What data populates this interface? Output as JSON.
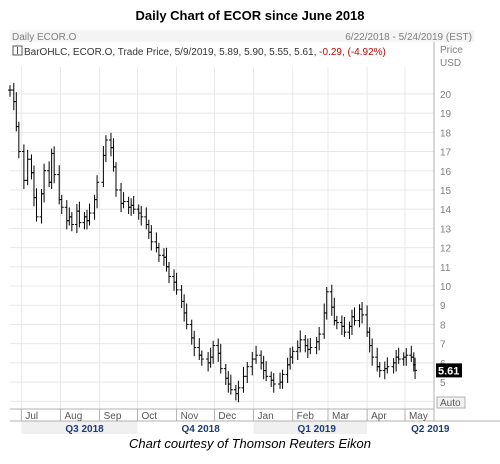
{
  "header": {
    "title": "Daily Chart of ECOR since June 2018",
    "caption": "Chart courtesy of Thomson Reuters Eikon"
  },
  "toolbar": {
    "symbol_label": "Daily ECOR.O",
    "date_range": "6/22/2018 - 5/24/2019 (EST)",
    "price_label": "Price",
    "currency_label": "USD",
    "auto_label": "Auto"
  },
  "legend": {
    "series": "BarOHLC, ECOR.O, Trade Price,",
    "details": "5/9/2019, 5.89, 5.90, 5.55, 5.61,",
    "change": "-0.29, (-4.92%)"
  },
  "last_price_tag": "5.61",
  "colors": {
    "bars": "#000000",
    "change_text": "#cc0000",
    "grid": "#e8e8e8",
    "axis_text": "#808080",
    "price_tag_bg": "#000000",
    "price_tag_text": "#ffffff",
    "quarter_band": "#f0f0f0"
  },
  "chart_data": {
    "type": "bar",
    "subtype": "ohlc",
    "series_name": "ECOR.O",
    "x_range": [
      "2018-06-22",
      "2019-05-24"
    ],
    "ylim": [
      3.6,
      21.4
    ],
    "y_ticks": [
      4,
      5,
      6,
      7,
      8,
      9,
      10,
      11,
      12,
      13,
      14,
      15,
      16,
      17,
      18,
      19,
      20
    ],
    "month_labels": [
      "Jul",
      "Aug",
      "Sep",
      "Oct",
      "Nov",
      "Dec",
      "Jan",
      "Feb",
      "Mar",
      "Apr",
      "May"
    ],
    "month_starts": [
      "2018-07-01",
      "2018-08-01",
      "2018-09-01",
      "2018-10-01",
      "2018-11-01",
      "2018-12-01",
      "2019-01-01",
      "2019-02-01",
      "2019-03-01",
      "2019-04-01",
      "2019-05-01"
    ],
    "quarter_labels": [
      "Q3 2018",
      "Q4 2018",
      "Q1 2019",
      "Q2 2019"
    ],
    "quarter_starts": [
      "2018-07-01",
      "2018-10-01",
      "2019-01-01",
      "2019-04-01"
    ],
    "grid": true,
    "closes": [
      {
        "date": "2018-06-22",
        "close": 20.2
      },
      {
        "date": "2018-06-25",
        "close": 19.6
      },
      {
        "date": "2018-06-27",
        "close": 18.3
      },
      {
        "date": "2018-06-29",
        "close": 17.0
      },
      {
        "date": "2018-07-03",
        "close": 15.5
      },
      {
        "date": "2018-07-06",
        "close": 16.6
      },
      {
        "date": "2018-07-09",
        "close": 15.9
      },
      {
        "date": "2018-07-11",
        "close": 14.6
      },
      {
        "date": "2018-07-13",
        "close": 13.6
      },
      {
        "date": "2018-07-17",
        "close": 14.8
      },
      {
        "date": "2018-07-19",
        "close": 16.0
      },
      {
        "date": "2018-07-23",
        "close": 15.4
      },
      {
        "date": "2018-07-25",
        "close": 16.9
      },
      {
        "date": "2018-07-27",
        "close": 15.8
      },
      {
        "date": "2018-07-31",
        "close": 14.5
      },
      {
        "date": "2018-08-02",
        "close": 14.1
      },
      {
        "date": "2018-08-06",
        "close": 13.4
      },
      {
        "date": "2018-08-08",
        "close": 13.6
      },
      {
        "date": "2018-08-10",
        "close": 13.2
      },
      {
        "date": "2018-08-14",
        "close": 13.9
      },
      {
        "date": "2018-08-16",
        "close": 13.3
      },
      {
        "date": "2018-08-20",
        "close": 13.6
      },
      {
        "date": "2018-08-22",
        "close": 13.4
      },
      {
        "date": "2018-08-24",
        "close": 13.8
      },
      {
        "date": "2018-08-28",
        "close": 14.5
      },
      {
        "date": "2018-08-30",
        "close": 15.4
      },
      {
        "date": "2018-09-04",
        "close": 16.8
      },
      {
        "date": "2018-09-06",
        "close": 17.6
      },
      {
        "date": "2018-09-10",
        "close": 17.2
      },
      {
        "date": "2018-09-12",
        "close": 16.2
      },
      {
        "date": "2018-09-14",
        "close": 15.0
      },
      {
        "date": "2018-09-18",
        "close": 14.3
      },
      {
        "date": "2018-09-20",
        "close": 14.4
      },
      {
        "date": "2018-09-24",
        "close": 14.1
      },
      {
        "date": "2018-09-26",
        "close": 14.2
      },
      {
        "date": "2018-09-28",
        "close": 14.0
      },
      {
        "date": "2018-10-02",
        "close": 13.8
      },
      {
        "date": "2018-10-04",
        "close": 13.6
      },
      {
        "date": "2018-10-08",
        "close": 13.2
      },
      {
        "date": "2018-10-10",
        "close": 12.8
      },
      {
        "date": "2018-10-12",
        "close": 12.3
      },
      {
        "date": "2018-10-16",
        "close": 12.0
      },
      {
        "date": "2018-10-18",
        "close": 11.6
      },
      {
        "date": "2018-10-22",
        "close": 11.5
      },
      {
        "date": "2018-10-24",
        "close": 11.0
      },
      {
        "date": "2018-10-26",
        "close": 10.5
      },
      {
        "date": "2018-10-30",
        "close": 10.2
      },
      {
        "date": "2018-11-01",
        "close": 9.8
      },
      {
        "date": "2018-11-05",
        "close": 9.2
      },
      {
        "date": "2018-11-07",
        "close": 8.6
      },
      {
        "date": "2018-11-09",
        "close": 8.0
      },
      {
        "date": "2018-11-13",
        "close": 7.3
      },
      {
        "date": "2018-11-15",
        "close": 6.8
      },
      {
        "date": "2018-11-19",
        "close": 6.4
      },
      {
        "date": "2018-11-21",
        "close": 6.2
      },
      {
        "date": "2018-11-26",
        "close": 6.0
      },
      {
        "date": "2018-11-28",
        "close": 6.3
      },
      {
        "date": "2018-11-30",
        "close": 6.9
      },
      {
        "date": "2018-12-04",
        "close": 6.5
      },
      {
        "date": "2018-12-06",
        "close": 5.7
      },
      {
        "date": "2018-12-10",
        "close": 5.2
      },
      {
        "date": "2018-12-12",
        "close": 4.9
      },
      {
        "date": "2018-12-14",
        "close": 4.6
      },
      {
        "date": "2018-12-18",
        "close": 4.4
      },
      {
        "date": "2018-12-20",
        "close": 4.7
      },
      {
        "date": "2018-12-24",
        "close": 5.3
      },
      {
        "date": "2018-12-27",
        "close": 5.8
      },
      {
        "date": "2018-12-31",
        "close": 6.2
      },
      {
        "date": "2019-01-03",
        "close": 6.4
      },
      {
        "date": "2019-01-07",
        "close": 6.0
      },
      {
        "date": "2019-01-09",
        "close": 5.6
      },
      {
        "date": "2019-01-11",
        "close": 5.3
      },
      {
        "date": "2019-01-15",
        "close": 5.1
      },
      {
        "date": "2019-01-17",
        "close": 4.9
      },
      {
        "date": "2019-01-22",
        "close": 5.0
      },
      {
        "date": "2019-01-24",
        "close": 5.4
      },
      {
        "date": "2019-01-28",
        "close": 5.9
      },
      {
        "date": "2019-01-30",
        "close": 6.3
      },
      {
        "date": "2019-02-01",
        "close": 6.6
      },
      {
        "date": "2019-02-05",
        "close": 6.8
      },
      {
        "date": "2019-02-07",
        "close": 7.2
      },
      {
        "date": "2019-02-11",
        "close": 6.9
      },
      {
        "date": "2019-02-13",
        "close": 6.7
      },
      {
        "date": "2019-02-15",
        "close": 6.8
      },
      {
        "date": "2019-02-20",
        "close": 7.1
      },
      {
        "date": "2019-02-22",
        "close": 7.5
      },
      {
        "date": "2019-02-26",
        "close": 8.6
      },
      {
        "date": "2019-02-28",
        "close": 9.7
      },
      {
        "date": "2019-03-04",
        "close": 8.9
      },
      {
        "date": "2019-03-06",
        "close": 8.2
      },
      {
        "date": "2019-03-08",
        "close": 8.1
      },
      {
        "date": "2019-03-12",
        "close": 7.9
      },
      {
        "date": "2019-03-14",
        "close": 7.6
      },
      {
        "date": "2019-03-18",
        "close": 7.9
      },
      {
        "date": "2019-03-20",
        "close": 8.4
      },
      {
        "date": "2019-03-22",
        "close": 8.2
      },
      {
        "date": "2019-03-26",
        "close": 8.8
      },
      {
        "date": "2019-03-28",
        "close": 8.5
      },
      {
        "date": "2019-04-01",
        "close": 7.6
      },
      {
        "date": "2019-04-03",
        "close": 6.9
      },
      {
        "date": "2019-04-05",
        "close": 6.3
      },
      {
        "date": "2019-04-09",
        "close": 5.8
      },
      {
        "date": "2019-04-11",
        "close": 5.6
      },
      {
        "date": "2019-04-15",
        "close": 5.7
      },
      {
        "date": "2019-04-17",
        "close": 5.8
      },
      {
        "date": "2019-04-22",
        "close": 6.0
      },
      {
        "date": "2019-04-24",
        "close": 6.3
      },
      {
        "date": "2019-04-26",
        "close": 6.2
      },
      {
        "date": "2019-04-30",
        "close": 6.3
      },
      {
        "date": "2019-05-02",
        "close": 6.4
      },
      {
        "date": "2019-05-06",
        "close": 6.3
      },
      {
        "date": "2019-05-08",
        "close": 5.9
      },
      {
        "date": "2019-05-09",
        "close": 5.61
      }
    ]
  }
}
